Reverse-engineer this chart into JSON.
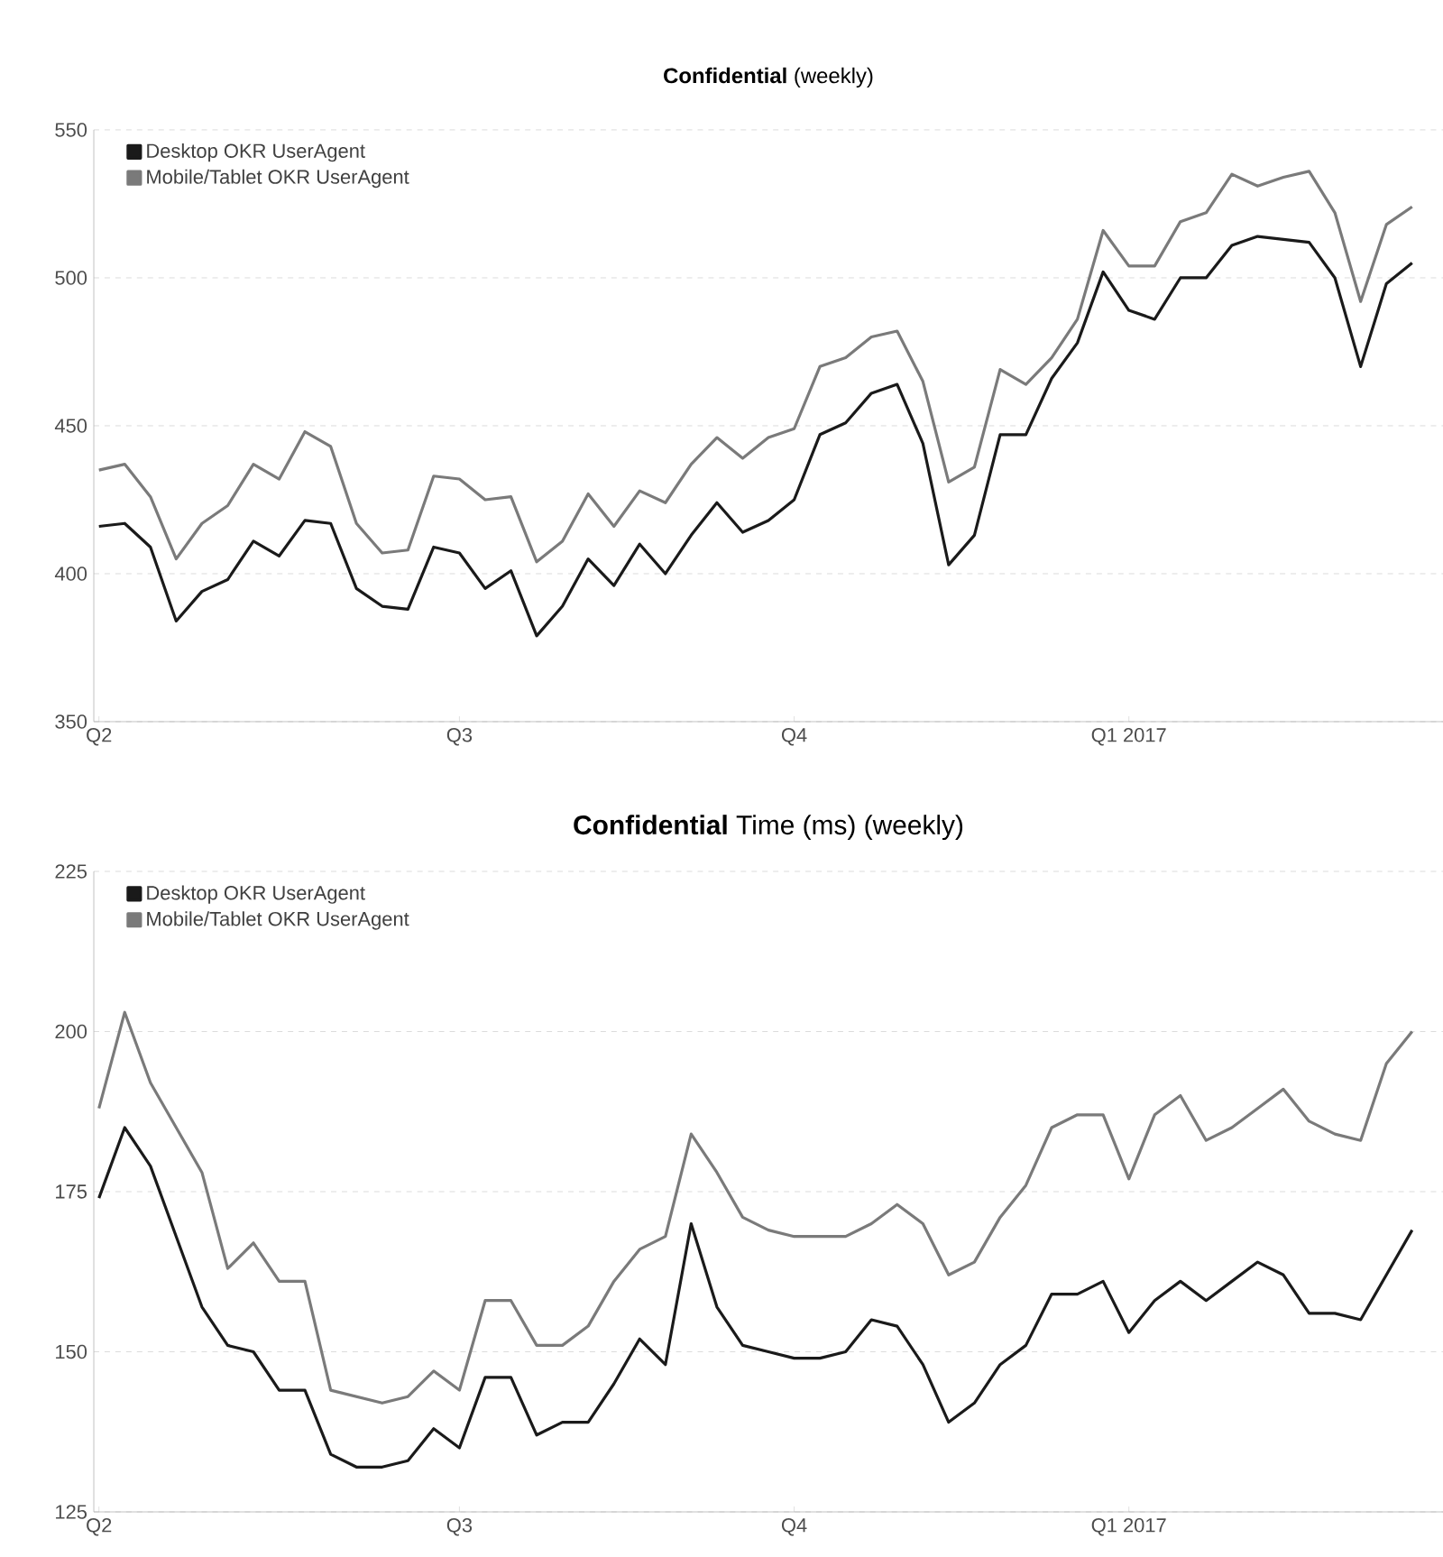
{
  "chart_data": [
    {
      "type": "line",
      "title": "**Confidential** (weekly)",
      "categories": [
        "Q2",
        null,
        null,
        null,
        null,
        null,
        null,
        null,
        null,
        null,
        null,
        null,
        null,
        null,
        "Q3",
        null,
        null,
        null,
        null,
        null,
        null,
        null,
        null,
        null,
        null,
        null,
        null,
        "Q4",
        null,
        null,
        null,
        null,
        null,
        null,
        null,
        null,
        null,
        null,
        null,
        null,
        "Q1 2017",
        null,
        null,
        null,
        null,
        null,
        null,
        null,
        null,
        null,
        null,
        null
      ],
      "ylim": [
        350,
        550
      ],
      "yticks": [
        350,
        400,
        450,
        500,
        550
      ],
      "grid": "y",
      "legend": "top left",
      "marker": "none",
      "line_style": "solid",
      "series": [
        {
          "name": "Desktop OKR UserAgent",
          "color": "#1a1a1a",
          "values": [
            416,
            417,
            409,
            384,
            394,
            398,
            411,
            406,
            418,
            417,
            395,
            389,
            388,
            409,
            407,
            395,
            401,
            379,
            389,
            405,
            396,
            410,
            400,
            413,
            424,
            414,
            418,
            425,
            447,
            451,
            461,
            464,
            444,
            403,
            413,
            447,
            447,
            466,
            478,
            502,
            489,
            486,
            500,
            500,
            511,
            514,
            513,
            512,
            500,
            470,
            498,
            505
          ]
        },
        {
          "name": "Mobile/Tablet OKR UserAgent",
          "color": "#7a7a7a",
          "values": [
            435,
            437,
            426,
            405,
            417,
            423,
            437,
            432,
            448,
            443,
            417,
            407,
            408,
            433,
            432,
            425,
            426,
            404,
            411,
            427,
            416,
            428,
            424,
            437,
            446,
            439,
            446,
            449,
            470,
            473,
            480,
            482,
            465,
            431,
            436,
            469,
            464,
            473,
            486,
            516,
            504,
            504,
            519,
            522,
            535,
            531,
            534,
            536,
            522,
            492,
            518,
            524
          ]
        }
      ]
    },
    {
      "type": "line",
      "title": "**Confidential** Time (ms) (weekly)",
      "categories": [
        "Q2",
        null,
        null,
        null,
        null,
        null,
        null,
        null,
        null,
        null,
        null,
        null,
        null,
        null,
        "Q3",
        null,
        null,
        null,
        null,
        null,
        null,
        null,
        null,
        null,
        null,
        null,
        null,
        "Q4",
        null,
        null,
        null,
        null,
        null,
        null,
        null,
        null,
        null,
        null,
        null,
        null,
        "Q1 2017",
        null,
        null,
        null,
        null,
        null,
        null,
        null,
        null,
        null,
        null,
        null
      ],
      "ylim": [
        125,
        225
      ],
      "yticks": [
        125,
        150,
        175,
        200,
        225
      ],
      "grid": "y",
      "legend": "top left",
      "marker": "none",
      "line_style": "solid",
      "series": [
        {
          "name": "Desktop OKR UserAgent",
          "color": "#1a1a1a",
          "values": [
            174,
            185,
            179,
            168,
            157,
            151,
            150,
            144,
            144,
            134,
            132,
            132,
            133,
            138,
            135,
            146,
            146,
            137,
            139,
            139,
            145,
            152,
            148,
            170,
            157,
            151,
            150,
            149,
            149,
            150,
            155,
            154,
            148,
            139,
            142,
            148,
            151,
            159,
            159,
            161,
            153,
            158,
            161,
            158,
            161,
            164,
            162,
            156,
            156,
            155,
            162,
            169
          ]
        },
        {
          "name": "Mobile/Tablet OKR UserAgent",
          "color": "#7a7a7a",
          "values": [
            188,
            203,
            192,
            185,
            178,
            163,
            167,
            161,
            161,
            144,
            143,
            142,
            143,
            147,
            144,
            158,
            158,
            151,
            151,
            154,
            161,
            166,
            168,
            184,
            178,
            171,
            169,
            168,
            168,
            168,
            170,
            173,
            170,
            162,
            164,
            171,
            176,
            185,
            187,
            187,
            177,
            187,
            190,
            183,
            185,
            188,
            191,
            186,
            184,
            183,
            195,
            200
          ]
        }
      ]
    }
  ]
}
